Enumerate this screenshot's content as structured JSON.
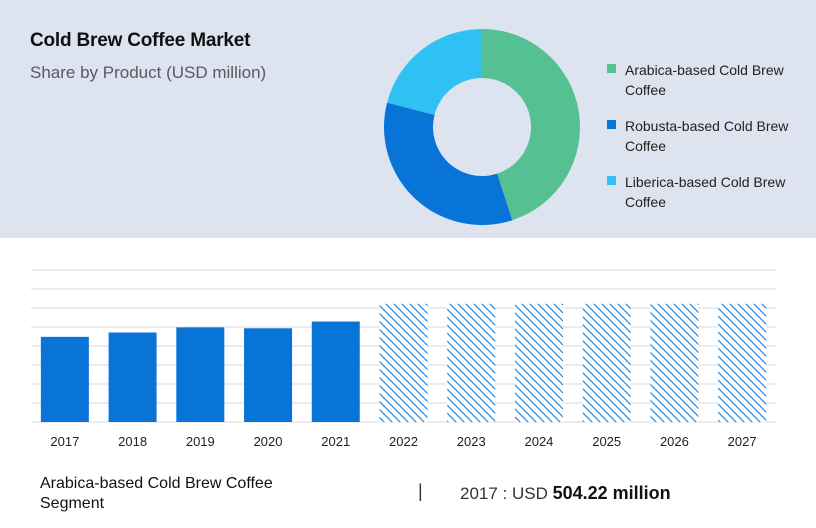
{
  "header": {
    "title": "Cold Brew Coffee Market",
    "subtitle": "Share by Product (USD million)"
  },
  "colors": {
    "arabica": "#55c192",
    "robusta": "#0874d8",
    "liberica": "#2fc1f3",
    "bar": "#0874d8",
    "hatch": "#2f86d6",
    "grid": "#d8dadd",
    "panel": "#dde3ef"
  },
  "chart_data": [
    {
      "type": "pie",
      "title": "Share by Product (USD million)",
      "donut": true,
      "labels": [
        "Arabica-based Cold Brew Coffee",
        "Robusta-based Cold Brew Coffee",
        "Liberica-based Cold Brew Coffee"
      ],
      "values": [
        45,
        34,
        21
      ],
      "legend": "right"
    },
    {
      "type": "bar",
      "categories": [
        "2017",
        "2018",
        "2019",
        "2020",
        "2021",
        "2022",
        "2023",
        "2024",
        "2025",
        "2026",
        "2027"
      ],
      "values": [
        504.22,
        530,
        560,
        555,
        595,
        700,
        700,
        700,
        700,
        700,
        700
      ],
      "forecast_from": "2022",
      "ylim": [
        0,
        900
      ],
      "grid": true,
      "xlabel": "",
      "ylabel": ""
    }
  ],
  "footer": {
    "segment_label": "Arabica-based Cold Brew Coffee Segment",
    "separator": "|",
    "value_prefix": "2017 : USD ",
    "value_amount": "504.22 million"
  }
}
